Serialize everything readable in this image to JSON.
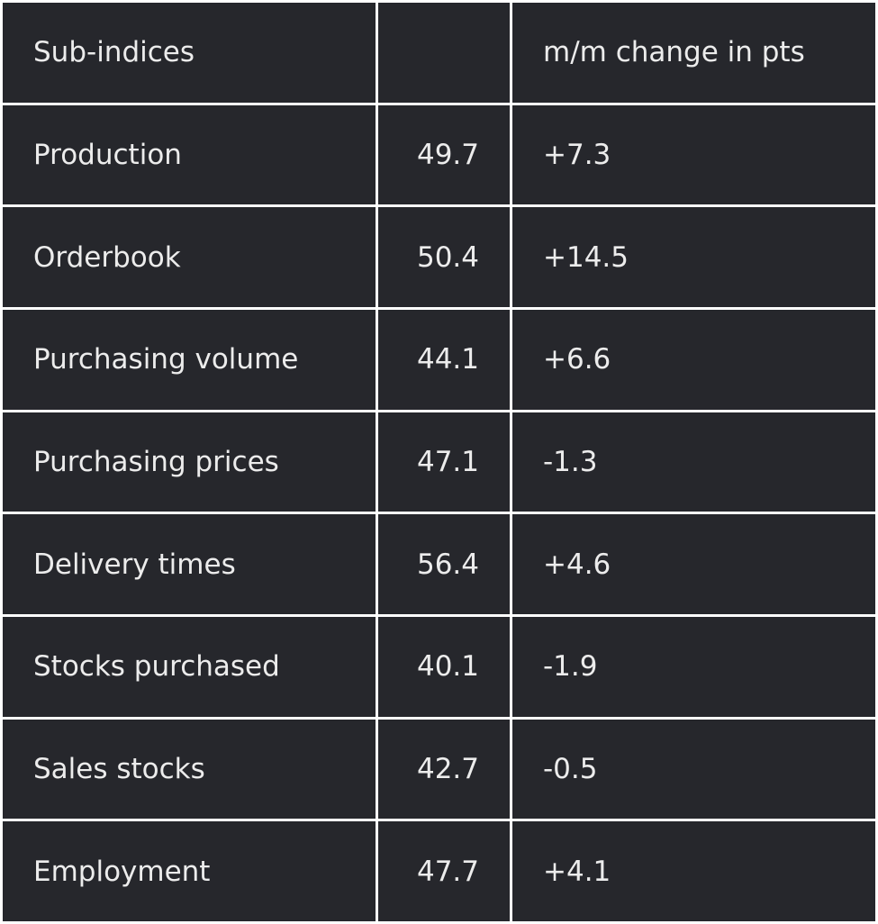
{
  "table": {
    "header": {
      "label": "Sub-indices",
      "change": "m/m change in pts"
    },
    "rows": [
      [
        "Production",
        "49.7",
        "+7.3"
      ],
      [
        "Orderbook",
        "50.4",
        "+14.5"
      ],
      [
        "Purchasing volume",
        "44.1",
        "+6.6"
      ],
      [
        "Purchasing prices",
        "47.1",
        "-1.3"
      ],
      [
        "Delivery times",
        "56.4",
        "+4.6"
      ],
      [
        "Stocks purchased",
        "40.1",
        "-1.9"
      ],
      [
        "Sales stocks",
        "42.7",
        "-0.5"
      ],
      [
        "Employment",
        "47.7",
        "+4.1"
      ]
    ]
  }
}
